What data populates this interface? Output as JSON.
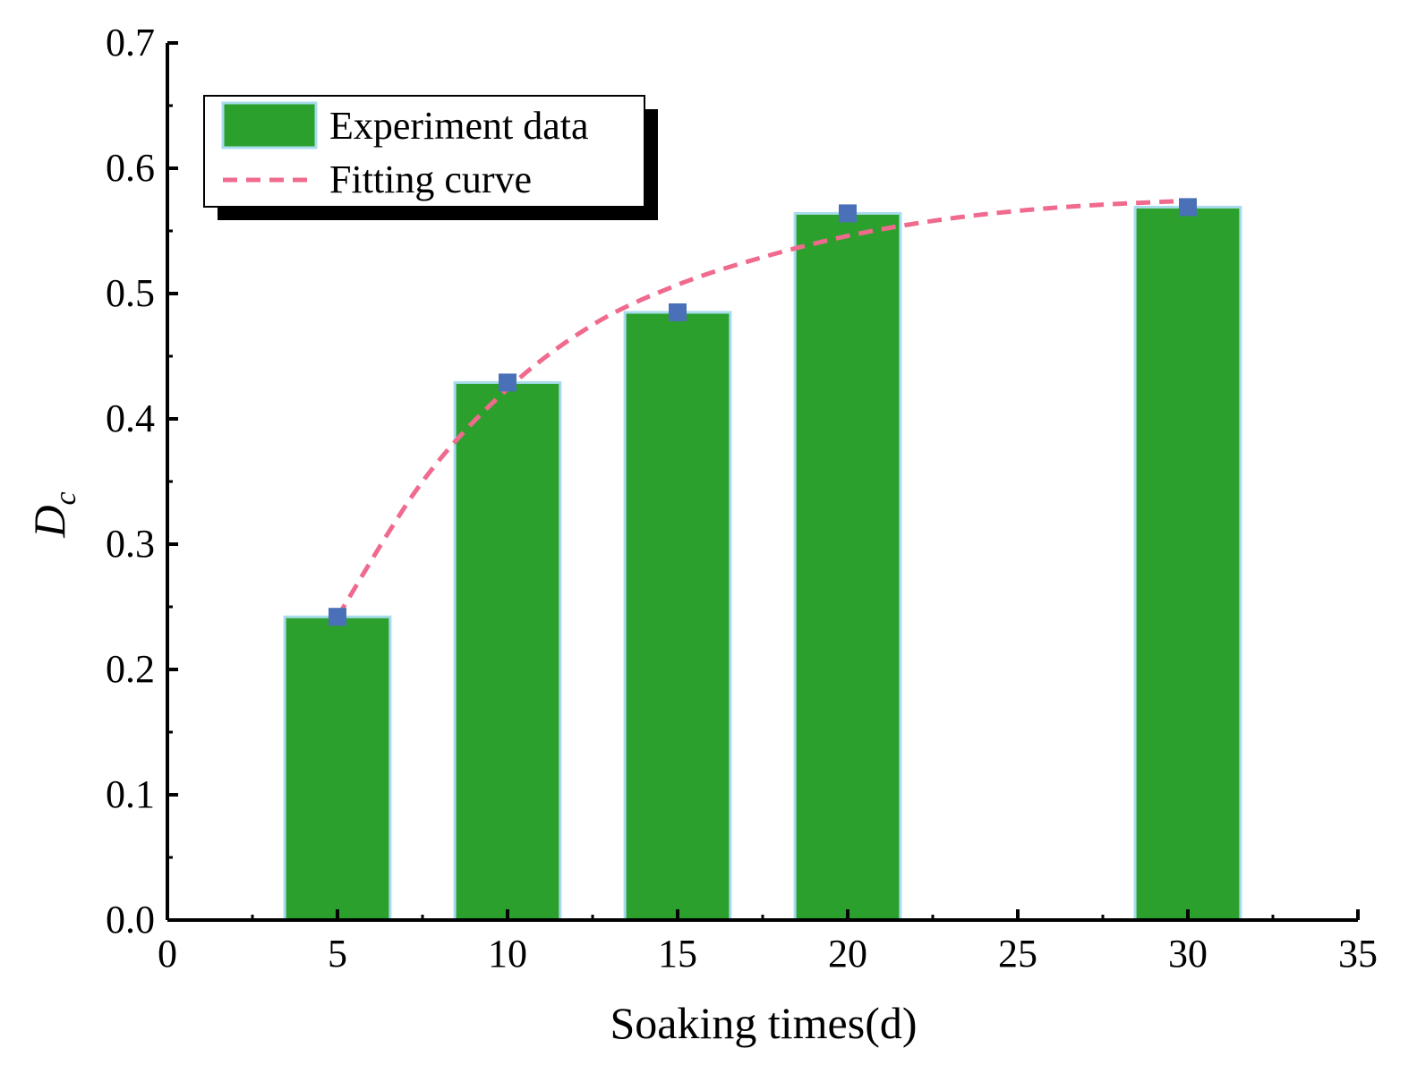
{
  "chart_data": {
    "type": "bar",
    "xlabel": "Soaking times(d)",
    "ylabel": {
      "main": "D",
      "sub": "c"
    },
    "xlim": [
      0,
      35
    ],
    "ylim": [
      0,
      0.7
    ],
    "x_ticks": [
      "0",
      "5",
      "10",
      "15",
      "20",
      "25",
      "30",
      "35"
    ],
    "x_tick_values": [
      0,
      5,
      10,
      15,
      20,
      25,
      30,
      35
    ],
    "y_ticks": [
      "0.0",
      "0.1",
      "0.2",
      "0.3",
      "0.4",
      "0.5",
      "0.6",
      "0.7"
    ],
    "y_tick_values": [
      0,
      0.1,
      0.2,
      0.3,
      0.4,
      0.5,
      0.6,
      0.7
    ],
    "bar_width": 3.1,
    "series": [
      {
        "name": "Experiment data",
        "kind": "bar",
        "color": "#2ca02c",
        "edge_color": "#a8dcec",
        "marker_color": "#4a70b8",
        "x": [
          5,
          10,
          15,
          20,
          30
        ],
        "values": [
          0.242,
          0.429,
          0.485,
          0.564,
          0.569
        ]
      },
      {
        "name": "Fitting curve",
        "kind": "line",
        "style": "dashed",
        "color": "#f06a8e",
        "x": [
          5,
          7.5,
          10,
          12.5,
          15,
          17.5,
          20,
          22.5,
          25,
          27.5,
          30
        ],
        "values": [
          0.242,
          0.35,
          0.424,
          0.475,
          0.507,
          0.529,
          0.546,
          0.558,
          0.566,
          0.571,
          0.574
        ]
      }
    ],
    "legend": {
      "position": "top-left",
      "entries": [
        "Experiment data",
        "Fitting curve"
      ]
    }
  }
}
